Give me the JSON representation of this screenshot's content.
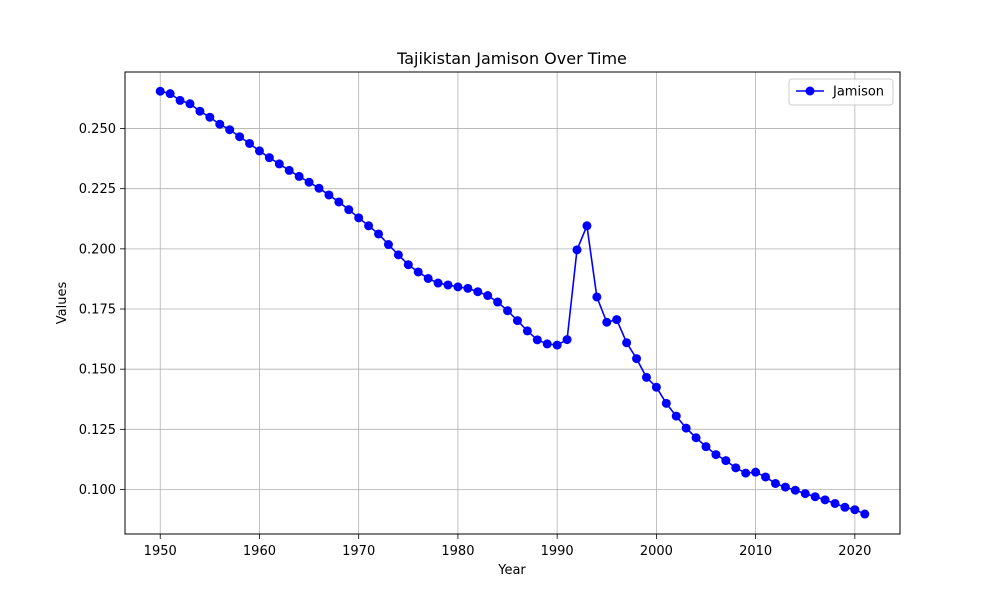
{
  "chart_data": {
    "type": "line",
    "title": "Tajikistan Jamison Over Time",
    "xlabel": "Year",
    "ylabel": "Values",
    "xlim": [
      1946.45,
      2024.55
    ],
    "ylim": [
      0.0815,
      0.2735
    ],
    "x_ticks": [
      1950,
      1960,
      1970,
      1980,
      1990,
      2000,
      2010,
      2020
    ],
    "y_ticks": [
      0.1,
      0.125,
      0.15,
      0.175,
      0.2,
      0.225,
      0.25
    ],
    "y_tick_labels": [
      "0.100",
      "0.125",
      "0.150",
      "0.175",
      "0.200",
      "0.225",
      "0.250"
    ],
    "grid": true,
    "legend_position": "top-right",
    "series": [
      {
        "name": "Jamison",
        "color": "#0000ff",
        "marker": "circle",
        "x": [
          1950,
          1951,
          1952,
          1953,
          1954,
          1955,
          1956,
          1957,
          1958,
          1959,
          1960,
          1961,
          1962,
          1963,
          1964,
          1965,
          1966,
          1967,
          1968,
          1969,
          1970,
          1971,
          1972,
          1973,
          1974,
          1975,
          1976,
          1977,
          1978,
          1979,
          1980,
          1981,
          1982,
          1983,
          1984,
          1985,
          1986,
          1987,
          1988,
          1989,
          1990,
          1991,
          1992,
          1993,
          1994,
          1995,
          1996,
          1997,
          1998,
          1999,
          2000,
          2001,
          2002,
          2003,
          2004,
          2005,
          2006,
          2007,
          2008,
          2009,
          2010,
          2011,
          2012,
          2013,
          2014,
          2015,
          2016,
          2017,
          2018,
          2019,
          2020,
          2021
        ],
        "values": [
          0.2655,
          0.2645,
          0.2617,
          0.2603,
          0.2572,
          0.2547,
          0.2518,
          0.2495,
          0.2466,
          0.2438,
          0.2407,
          0.2379,
          0.2353,
          0.2326,
          0.2301,
          0.2277,
          0.2252,
          0.2224,
          0.2195,
          0.2163,
          0.2129,
          0.2096,
          0.2062,
          0.2018,
          0.1975,
          0.1934,
          0.1904,
          0.1877,
          0.1858,
          0.185,
          0.1842,
          0.1836,
          0.1822,
          0.1806,
          0.1779,
          0.1743,
          0.1702,
          0.1659,
          0.1622,
          0.1605,
          0.16,
          0.1623,
          0.1996,
          0.2096,
          0.18,
          0.1695,
          0.1706,
          0.161,
          0.1544,
          0.1466,
          0.1425,
          0.1358,
          0.1305,
          0.1255,
          0.1215,
          0.1178,
          0.1145,
          0.112,
          0.109,
          0.1068,
          0.1072,
          0.1052,
          0.1025,
          0.101,
          0.0997,
          0.0983,
          0.097,
          0.0957,
          0.0942,
          0.0926,
          0.0916,
          0.0898
        ]
      }
    ]
  }
}
